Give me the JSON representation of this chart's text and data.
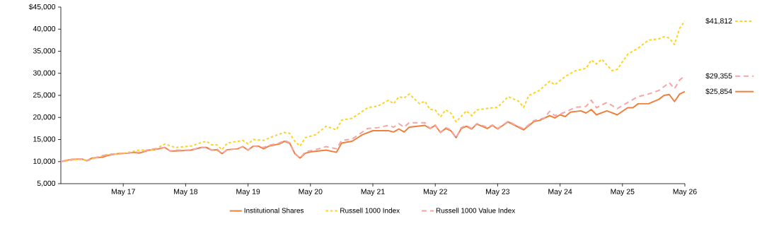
{
  "chart_data": {
    "type": "line",
    "xlim": [
      "2016-05",
      "2026-05"
    ],
    "ylim": [
      5000,
      45000
    ],
    "xticks": [
      {
        "value": "2017-05",
        "label": "May 17"
      },
      {
        "value": "2018-05",
        "label": "May 18"
      },
      {
        "value": "2019-05",
        "label": "May 19"
      },
      {
        "value": "2020-05",
        "label": "May 20"
      },
      {
        "value": "2021-05",
        "label": "May 21"
      },
      {
        "value": "2022-05",
        "label": "May 22"
      },
      {
        "value": "2023-05",
        "label": "May 23"
      },
      {
        "value": "2024-05",
        "label": "May 24"
      },
      {
        "value": "2025-05",
        "label": "May 25"
      },
      {
        "value": "2026-05",
        "label": "May 26"
      }
    ],
    "yticks": [
      {
        "value": 5000,
        "label": "5,000"
      },
      {
        "value": 10000,
        "label": "10,000"
      },
      {
        "value": 15000,
        "label": "15,000"
      },
      {
        "value": 20000,
        "label": "20,000"
      },
      {
        "value": 25000,
        "label": "25,000"
      },
      {
        "value": 30000,
        "label": "30,000"
      },
      {
        "value": 35000,
        "label": "35,000"
      },
      {
        "value": 40000,
        "label": "40,000"
      },
      {
        "value": 45000,
        "label": "$45,000"
      }
    ],
    "grid": false,
    "legend": "bottom",
    "marker": "none",
    "series": [
      {
        "name": "Institutional Shares",
        "color": "#f07f3c",
        "line_style": "solid",
        "x": [
          "2016-05",
          "2016-07",
          "2016-09",
          "2016-10",
          "2016-11",
          "2017-01",
          "2017-02",
          "2017-04",
          "2017-06",
          "2017-07",
          "2017-08",
          "2017-10",
          "2017-11",
          "2018-01",
          "2018-02",
          "2018-03",
          "2018-06",
          "2018-08",
          "2018-09",
          "2018-10",
          "2018-11",
          "2018-12",
          "2019-01",
          "2019-03",
          "2019-04",
          "2019-05",
          "2019-06",
          "2019-07",
          "2019-08",
          "2019-09",
          "2019-11",
          "2019-12",
          "2020-01",
          "2020-02",
          "2020-03",
          "2020-04",
          "2020-05",
          "2020-08",
          "2020-10",
          "2020-11",
          "2021-01",
          "2021-03",
          "2021-05",
          "2021-08",
          "2021-09",
          "2021-10",
          "2021-11",
          "2021-12",
          "2022-03",
          "2022-04",
          "2022-05",
          "2022-06",
          "2022-07",
          "2022-08",
          "2022-09",
          "2022-10",
          "2022-11",
          "2022-12",
          "2023-01",
          "2023-03",
          "2023-04",
          "2023-05",
          "2023-07",
          "2023-10",
          "2023-12",
          "2024-01",
          "2024-03",
          "2024-04",
          "2024-05",
          "2024-06",
          "2024-07",
          "2024-09",
          "2024-10",
          "2024-11",
          "2024-12",
          "2025-02",
          "2025-04",
          "2025-06",
          "2025-07",
          "2025-08",
          "2025-10",
          "2025-12",
          "2026-01",
          "2026-02",
          "2026-03",
          "2026-04",
          "2026-05"
        ],
        "values": [
          10000,
          10500,
          10600,
          10200,
          10800,
          11000,
          11400,
          11800,
          11900,
          12100,
          11900,
          12600,
          12700,
          13200,
          12400,
          12400,
          12600,
          13200,
          13200,
          12600,
          12700,
          11800,
          12700,
          12900,
          13400,
          12600,
          13500,
          13500,
          12900,
          13500,
          14000,
          14600,
          14200,
          11800,
          10800,
          11900,
          12200,
          12600,
          12100,
          14200,
          14600,
          16100,
          17000,
          17000,
          16700,
          17400,
          16700,
          17800,
          18200,
          17500,
          18200,
          16600,
          17500,
          17000,
          15400,
          17500,
          18000,
          17400,
          18500,
          17500,
          18200,
          17400,
          19000,
          17200,
          19100,
          19300,
          20400,
          19900,
          20600,
          20200,
          21200,
          21500,
          21000,
          21800,
          20600,
          21500,
          20600,
          22200,
          22200,
          23100,
          23100,
          24100,
          25000,
          25200,
          23600,
          25300,
          25854
        ]
      },
      {
        "name": "Russell 1000 Index",
        "color": "#ffd21f",
        "line_style": "dotted",
        "x": [
          "2016-05",
          "2016-07",
          "2016-09",
          "2016-10",
          "2016-12",
          "2017-02",
          "2017-05",
          "2017-06",
          "2017-08",
          "2017-11",
          "2018-01",
          "2018-03",
          "2018-06",
          "2018-08",
          "2018-09",
          "2018-10",
          "2018-11",
          "2018-12",
          "2019-01",
          "2019-04",
          "2019-05",
          "2019-06",
          "2019-08",
          "2019-10",
          "2019-12",
          "2020-01",
          "2020-02",
          "2020-03",
          "2020-04",
          "2020-06",
          "2020-08",
          "2020-10",
          "2020-11",
          "2021-01",
          "2021-04",
          "2021-06",
          "2021-08",
          "2021-09",
          "2021-10",
          "2021-11",
          "2021-12",
          "2022-02",
          "2022-03",
          "2022-04",
          "2022-05",
          "2022-06",
          "2022-07",
          "2022-08",
          "2022-09",
          "2022-11",
          "2022-12",
          "2023-01",
          "2023-04",
          "2023-05",
          "2023-07",
          "2023-09",
          "2023-10",
          "2023-11",
          "2024-01",
          "2024-03",
          "2024-04",
          "2024-06",
          "2024-08",
          "2024-10",
          "2024-11",
          "2024-12",
          "2025-01",
          "2025-03",
          "2025-04",
          "2025-06",
          "2025-08",
          "2025-10",
          "2025-12",
          "2026-01",
          "2026-02",
          "2026-03",
          "2026-04",
          "2026-05"
        ],
        "values": [
          10000,
          10300,
          10600,
          10200,
          11000,
          11600,
          11900,
          12100,
          12600,
          12700,
          14000,
          13200,
          13500,
          14300,
          14600,
          13800,
          13800,
          12700,
          14200,
          14800,
          14000,
          15000,
          14800,
          15800,
          16600,
          16400,
          14600,
          13500,
          15400,
          16100,
          18000,
          17200,
          19400,
          19800,
          22200,
          22600,
          23900,
          23100,
          24700,
          24400,
          25300,
          23100,
          23700,
          21800,
          21700,
          20100,
          21700,
          21000,
          19000,
          21500,
          20400,
          21700,
          22200,
          22300,
          24700,
          23700,
          22300,
          25000,
          26100,
          28200,
          27400,
          29300,
          30600,
          31100,
          33000,
          32100,
          33200,
          30600,
          30900,
          34300,
          35700,
          37500,
          37800,
          38300,
          38000,
          36500,
          40200,
          41812
        ]
      },
      {
        "name": "Russell 1000 Value Index",
        "color": "#f4a6a6",
        "line_style": "dashed",
        "x": [
          "2016-05",
          "2016-07",
          "2016-09",
          "2016-10",
          "2016-12",
          "2017-02",
          "2017-04",
          "2017-06",
          "2017-07",
          "2017-08",
          "2017-10",
          "2017-11",
          "2018-01",
          "2018-02",
          "2018-03",
          "2018-06",
          "2018-08",
          "2018-09",
          "2018-10",
          "2018-11",
          "2018-12",
          "2019-01",
          "2019-03",
          "2019-04",
          "2019-05",
          "2019-06",
          "2019-08",
          "2019-09",
          "2019-11",
          "2019-12",
          "2020-01",
          "2020-02",
          "2020-03",
          "2020-04",
          "2020-06",
          "2020-08",
          "2020-10",
          "2020-11",
          "2021-01",
          "2021-04",
          "2021-06",
          "2021-08",
          "2021-09",
          "2021-10",
          "2021-11",
          "2021-12",
          "2022-03",
          "2022-04",
          "2022-05",
          "2022-06",
          "2022-07",
          "2022-08",
          "2022-09",
          "2022-10",
          "2022-11",
          "2022-12",
          "2023-01",
          "2023-03",
          "2023-04",
          "2023-05",
          "2023-07",
          "2023-10",
          "2023-12",
          "2024-02",
          "2024-03",
          "2024-04",
          "2024-06",
          "2024-08",
          "2024-10",
          "2024-11",
          "2024-12",
          "2025-02",
          "2025-04",
          "2025-06",
          "2025-08",
          "2025-10",
          "2025-12",
          "2026-02",
          "2026-03",
          "2026-04",
          "2026-05"
        ],
        "values": [
          10000,
          10500,
          10600,
          10200,
          11000,
          11600,
          11800,
          11900,
          12200,
          12100,
          12700,
          12900,
          13200,
          12400,
          12600,
          12600,
          13200,
          13200,
          12600,
          12900,
          11800,
          12700,
          12900,
          13400,
          12600,
          13500,
          13200,
          13700,
          14200,
          14800,
          14300,
          11900,
          10800,
          12200,
          12700,
          13400,
          12900,
          14800,
          15100,
          17500,
          17700,
          18200,
          17800,
          18600,
          17800,
          18800,
          18800,
          17500,
          18300,
          16600,
          17700,
          17200,
          15400,
          17700,
          18200,
          17500,
          18600,
          17800,
          18300,
          17500,
          19100,
          17400,
          19300,
          19900,
          21400,
          20400,
          21200,
          22300,
          22500,
          23900,
          22200,
          23400,
          22000,
          23400,
          24700,
          25300,
          26100,
          27900,
          26500,
          28500,
          29355
        ]
      }
    ],
    "annotations": [
      {
        "text": "$41,812",
        "x": "2026-05",
        "y": 41812
      },
      {
        "text": "$29,355",
        "x": "2026-05",
        "y": 29355
      },
      {
        "text": "$25,854",
        "x": "2026-05",
        "y": 25854
      }
    ]
  }
}
